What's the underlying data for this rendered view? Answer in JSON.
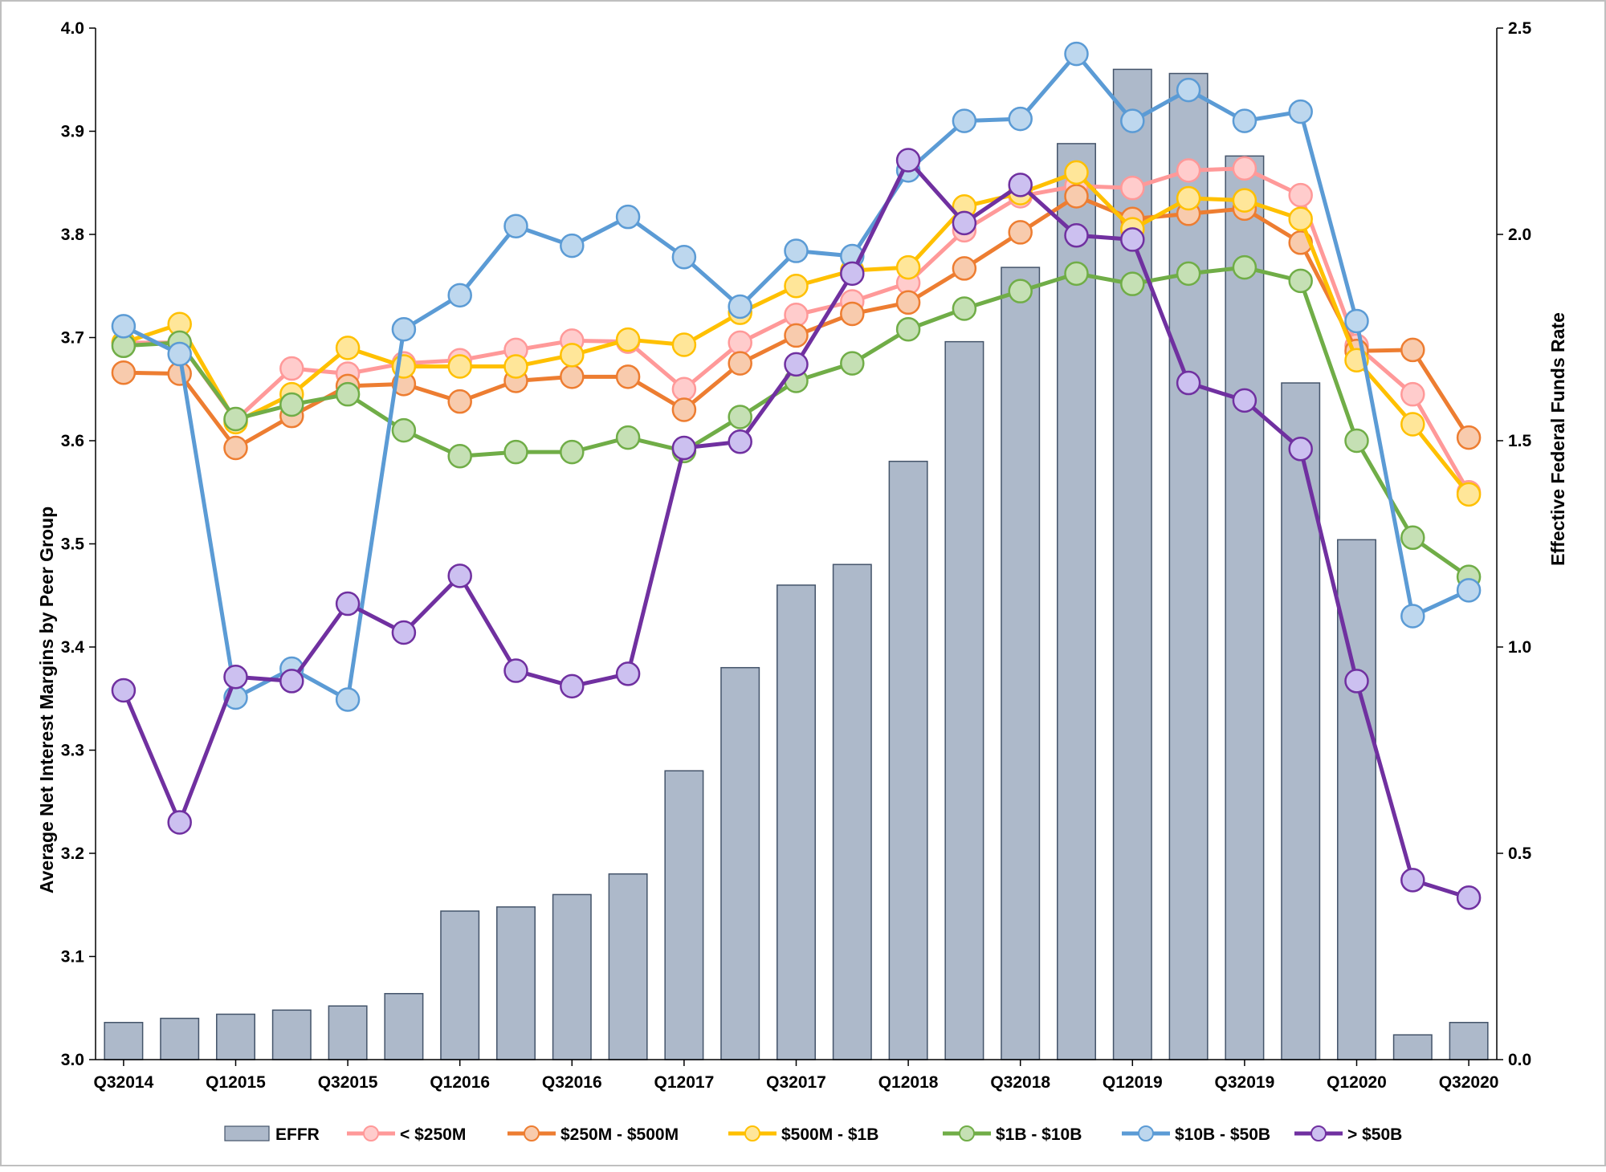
{
  "chart_data": {
    "type": "bar+line",
    "categories": [
      "Q32014",
      "Q42014",
      "Q12015",
      "Q22015",
      "Q32015",
      "Q42015",
      "Q12016",
      "Q22016",
      "Q32016",
      "Q42016",
      "Q12017",
      "Q22017",
      "Q32017",
      "Q42017",
      "Q12018",
      "Q22018",
      "Q32018",
      "Q42018",
      "Q12019",
      "Q22019",
      "Q32019",
      "Q42019",
      "Q12020",
      "Q22020",
      "Q32020"
    ],
    "x_tick_labels": [
      {
        "index": 0,
        "label": "Q32014"
      },
      {
        "index": 2,
        "label": "Q12015"
      },
      {
        "index": 4,
        "label": "Q32015"
      },
      {
        "index": 6,
        "label": "Q12016"
      },
      {
        "index": 8,
        "label": "Q32016"
      },
      {
        "index": 10,
        "label": "Q12017"
      },
      {
        "index": 12,
        "label": "Q32017"
      },
      {
        "index": 14,
        "label": "Q12018"
      },
      {
        "index": 16,
        "label": "Q32018"
      },
      {
        "index": 18,
        "label": "Q12019"
      },
      {
        "index": 20,
        "label": "Q32019"
      },
      {
        "index": 22,
        "label": "Q12020"
      },
      {
        "index": 24,
        "label": "Q32020"
      }
    ],
    "ylabel": "Average Net Interest Margins by Peer Group",
    "ylabel_right": "Effective Federal Funds Rate",
    "ylim": [
      3.0,
      4.0
    ],
    "ylim_right": [
      0.0,
      2.5
    ],
    "y_ticks": [
      "3.0",
      "3.1",
      "3.2",
      "3.3",
      "3.4",
      "3.5",
      "3.6",
      "3.7",
      "3.8",
      "3.9",
      "4.0"
    ],
    "y_ticks_right": [
      "0.0",
      "0.5",
      "1.0",
      "1.5",
      "2.0",
      "2.5"
    ],
    "bars": {
      "name": "EFFR",
      "axis": "right",
      "color": "#adb9ca",
      "edge": "#44546a",
      "values": [
        0.09,
        0.1,
        0.11,
        0.12,
        0.13,
        0.16,
        0.36,
        0.37,
        0.4,
        0.45,
        0.7,
        0.95,
        1.15,
        1.2,
        1.45,
        1.74,
        1.92,
        2.22,
        2.4,
        2.39,
        2.19,
        1.64,
        1.26,
        0.06,
        0.09
      ]
    },
    "series": [
      {
        "name": "< $250M",
        "color": "#ff9999",
        "fill": "#ffcccc",
        "values": [
          3.695,
          3.695,
          3.62,
          3.67,
          3.665,
          3.675,
          3.678,
          3.688,
          3.697,
          3.696,
          3.65,
          3.695,
          3.722,
          3.735,
          3.753,
          3.804,
          3.837,
          3.847,
          3.845,
          3.862,
          3.864,
          3.838,
          3.692,
          3.645,
          3.55
        ]
      },
      {
        "name": "$250M - $500M",
        "color": "#ed7d31",
        "fill": "#f8cbad",
        "values": [
          3.666,
          3.665,
          3.593,
          3.624,
          3.653,
          3.655,
          3.638,
          3.658,
          3.662,
          3.662,
          3.63,
          3.675,
          3.702,
          3.723,
          3.734,
          3.767,
          3.802,
          3.837,
          3.815,
          3.82,
          3.825,
          3.792,
          3.687,
          3.688,
          3.603
        ]
      },
      {
        "name": "$500M - $1B",
        "color": "#ffc000",
        "fill": "#ffe699",
        "values": [
          3.695,
          3.713,
          3.618,
          3.645,
          3.69,
          3.672,
          3.672,
          3.672,
          3.683,
          3.698,
          3.693,
          3.724,
          3.75,
          3.765,
          3.768,
          3.827,
          3.84,
          3.86,
          3.805,
          3.835,
          3.833,
          3.815,
          3.678,
          3.616,
          3.548
        ]
      },
      {
        "name": "$1B - $10B",
        "color": "#70ad47",
        "fill": "#c5e0b4",
        "values": [
          3.692,
          3.695,
          3.621,
          3.635,
          3.645,
          3.61,
          3.585,
          3.589,
          3.589,
          3.603,
          3.59,
          3.623,
          3.658,
          3.675,
          3.708,
          3.728,
          3.745,
          3.762,
          3.752,
          3.762,
          3.768,
          3.755,
          3.6,
          3.506,
          3.468
        ]
      },
      {
        "name": "$10B - $50B",
        "color": "#5b9bd5",
        "fill": "#bdd7ee",
        "values": [
          3.711,
          3.684,
          3.351,
          3.379,
          3.349,
          3.708,
          3.741,
          3.808,
          3.789,
          3.817,
          3.778,
          3.73,
          3.784,
          3.779,
          3.862,
          3.91,
          3.912,
          3.975,
          3.91,
          3.94,
          3.91,
          3.919,
          3.716,
          3.43,
          3.455
        ]
      },
      {
        "name": "> $50B",
        "color": "#7030a0",
        "fill": "#ccc0f0",
        "values": [
          3.358,
          3.23,
          3.371,
          3.367,
          3.442,
          3.414,
          3.469,
          3.377,
          3.362,
          3.374,
          3.593,
          3.599,
          3.674,
          3.762,
          3.872,
          3.811,
          3.848,
          3.799,
          3.795,
          3.656,
          3.639,
          3.592,
          3.367,
          3.174,
          3.157
        ]
      }
    ],
    "legend": [
      "EFFR",
      "< $250M",
      "$250M - $500M",
      "$500M - $1B",
      "$1B - $10B",
      "$10B - $50B",
      "> $50B"
    ],
    "legend_position": "bottom",
    "grid": false
  }
}
